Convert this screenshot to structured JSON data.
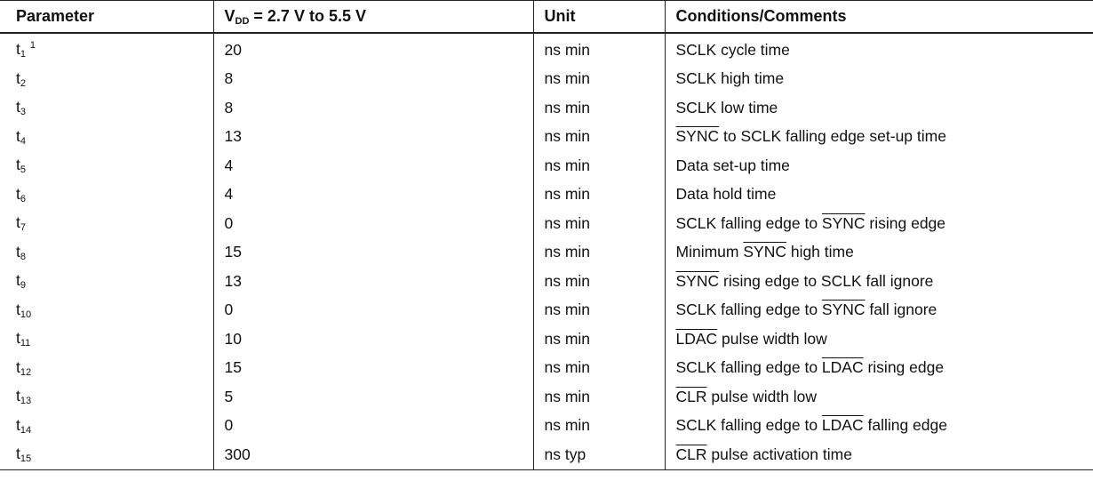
{
  "table": {
    "columns": [
      [
        {
          "text": "Parameter"
        }
      ],
      [
        {
          "text": "V"
        },
        {
          "text": "DD",
          "subscript": true
        },
        {
          "text": " = 2.7 V to 5.5 V"
        }
      ],
      [
        {
          "text": "Unit"
        }
      ],
      [
        {
          "text": "Conditions/Comments"
        }
      ]
    ],
    "rows": [
      {
        "parameter": {
          "symbol": "t",
          "subscript": "1",
          "footnote": "1"
        },
        "value": 20,
        "unit": "ns min",
        "conditions": [
          {
            "text": "SCLK cycle time"
          }
        ]
      },
      {
        "parameter": {
          "symbol": "t",
          "subscript": "2"
        },
        "value": 8,
        "unit": "ns min",
        "conditions": [
          {
            "text": "SCLK high time"
          }
        ]
      },
      {
        "parameter": {
          "symbol": "t",
          "subscript": "3"
        },
        "value": 8,
        "unit": "ns min",
        "conditions": [
          {
            "text": "SCLK low time"
          }
        ]
      },
      {
        "parameter": {
          "symbol": "t",
          "subscript": "4"
        },
        "value": 13,
        "unit": "ns min",
        "conditions": [
          {
            "text": "SYNC",
            "overline": true
          },
          {
            "text": " to SCLK falling edge set-up time"
          }
        ]
      },
      {
        "parameter": {
          "symbol": "t",
          "subscript": "5"
        },
        "value": 4,
        "unit": "ns min",
        "conditions": [
          {
            "text": "Data set-up time"
          }
        ]
      },
      {
        "parameter": {
          "symbol": "t",
          "subscript": "6"
        },
        "value": 4,
        "unit": "ns min",
        "conditions": [
          {
            "text": "Data hold time"
          }
        ]
      },
      {
        "parameter": {
          "symbol": "t",
          "subscript": "7"
        },
        "value": 0,
        "unit": "ns min",
        "conditions": [
          {
            "text": "SCLK falling edge to "
          },
          {
            "text": "SYNC",
            "overline": true
          },
          {
            "text": " rising edge"
          }
        ]
      },
      {
        "parameter": {
          "symbol": "t",
          "subscript": "8"
        },
        "value": 15,
        "unit": "ns min",
        "conditions": [
          {
            "text": "Minimum "
          },
          {
            "text": "SYNC",
            "overline": true
          },
          {
            "text": " high time"
          }
        ]
      },
      {
        "parameter": {
          "symbol": "t",
          "subscript": "9"
        },
        "value": 13,
        "unit": "ns min",
        "conditions": [
          {
            "text": "SYNC",
            "overline": true
          },
          {
            "text": " rising edge to SCLK fall ignore"
          }
        ]
      },
      {
        "parameter": {
          "symbol": "t",
          "subscript": "10"
        },
        "value": 0,
        "unit": "ns min",
        "conditions": [
          {
            "text": "SCLK falling edge to "
          },
          {
            "text": "SYNC",
            "overline": true
          },
          {
            "text": " fall ignore"
          }
        ]
      },
      {
        "parameter": {
          "symbol": "t",
          "subscript": "11"
        },
        "value": 10,
        "unit": "ns min",
        "conditions": [
          {
            "text": "LDAC",
            "overline": true
          },
          {
            "text": " pulse width low"
          }
        ]
      },
      {
        "parameter": {
          "symbol": "t",
          "subscript": "12"
        },
        "value": 15,
        "unit": "ns min",
        "conditions": [
          {
            "text": "SCLK falling edge to "
          },
          {
            "text": "LDAC",
            "overline": true
          },
          {
            "text": " rising edge"
          }
        ]
      },
      {
        "parameter": {
          "symbol": "t",
          "subscript": "13"
        },
        "value": 5,
        "unit": "ns min",
        "conditions": [
          {
            "text": "CLR",
            "overline": true
          },
          {
            "text": " pulse width low"
          }
        ]
      },
      {
        "parameter": {
          "symbol": "t",
          "subscript": "14"
        },
        "value": 0,
        "unit": "ns min",
        "conditions": [
          {
            "text": "SCLK falling edge to "
          },
          {
            "text": "LDAC",
            "overline": true
          },
          {
            "text": " falling edge"
          }
        ]
      },
      {
        "parameter": {
          "symbol": "t",
          "subscript": "15"
        },
        "value": 300,
        "unit": "ns typ",
        "conditions": [
          {
            "text": "CLR",
            "overline": true
          },
          {
            "text": " pulse activation time"
          }
        ]
      }
    ]
  }
}
